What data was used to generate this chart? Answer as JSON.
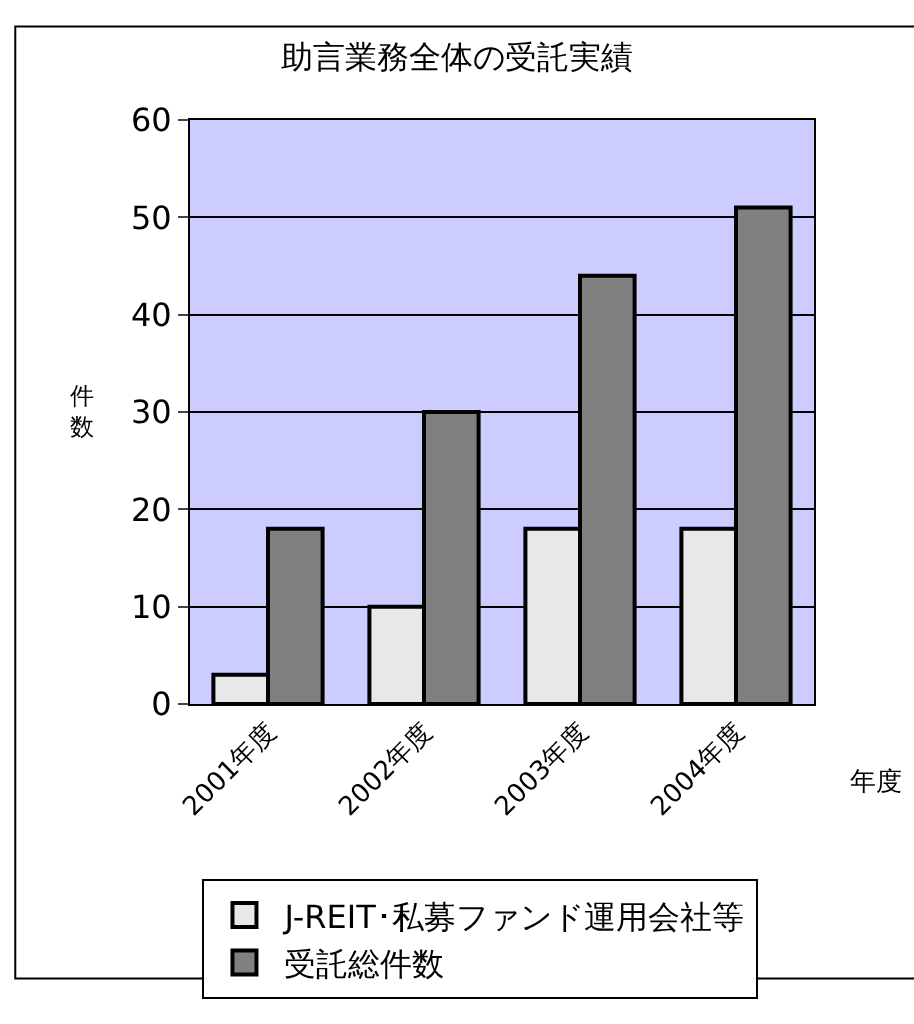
{
  "chart_data": {
    "type": "bar",
    "title": "助言業務全体の受託実績",
    "xlabel": "年度",
    "ylabel": "件数",
    "categories": [
      "2001年度",
      "2002年度",
      "2003年度",
      "2004年度"
    ],
    "series": [
      {
        "name": "J-REIT･私募ファンド運用会社等",
        "color": "#e8e8e8",
        "values": [
          3,
          10,
          18,
          18
        ]
      },
      {
        "name": "受託総件数",
        "color": "#808080",
        "values": [
          18,
          30,
          44,
          51
        ]
      }
    ],
    "ylim": [
      0,
      60
    ],
    "yticks": [
      0,
      10,
      20,
      30,
      40,
      50,
      60
    ],
    "grid": "y",
    "legend": "bottom"
  }
}
